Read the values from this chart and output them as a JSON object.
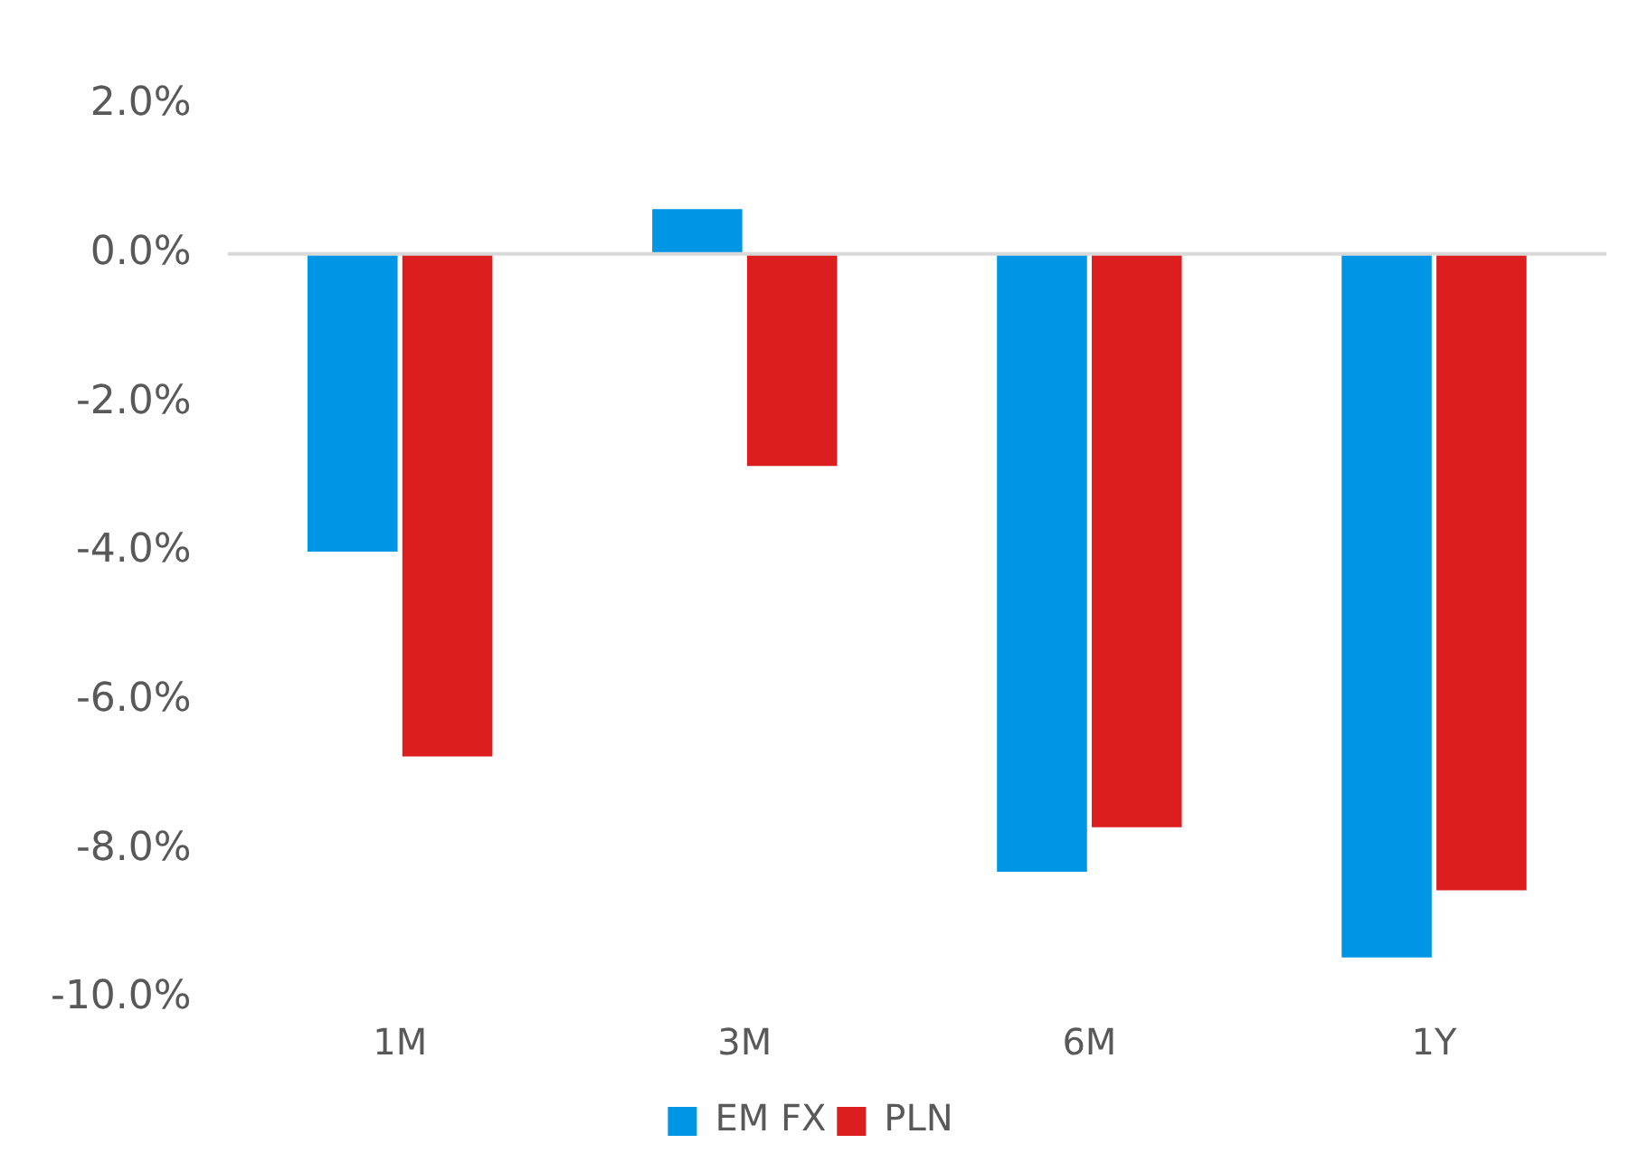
{
  "chart_data": {
    "type": "bar",
    "categories": [
      "1M",
      "3M",
      "6M",
      "1Y"
    ],
    "series": [
      {
        "name": "EM FX",
        "color": "#0096e6",
        "values": [
          -4.0,
          0.6,
          -8.3,
          -9.45
        ]
      },
      {
        "name": "PLN",
        "color": "#dc1e1e",
        "values": [
          -6.75,
          -2.85,
          -7.7,
          -8.55
        ]
      }
    ],
    "ylim": [
      -10,
      2
    ],
    "yticks": [
      {
        "value": -10,
        "label": "-10.0%"
      },
      {
        "value": -8,
        "label": "-8.0%"
      },
      {
        "value": -6,
        "label": "-6.0%"
      },
      {
        "value": -4,
        "label": "-4.0%"
      },
      {
        "value": -2,
        "label": "-2.0%"
      },
      {
        "value": 0,
        "label": "0.0%"
      },
      {
        "value": 2,
        "label": "2.0%"
      }
    ],
    "ref_lines": [
      {
        "axis": "y",
        "value": 0,
        "color": "#d9d9d9"
      }
    ],
    "grid": false,
    "legend": "bottom"
  }
}
